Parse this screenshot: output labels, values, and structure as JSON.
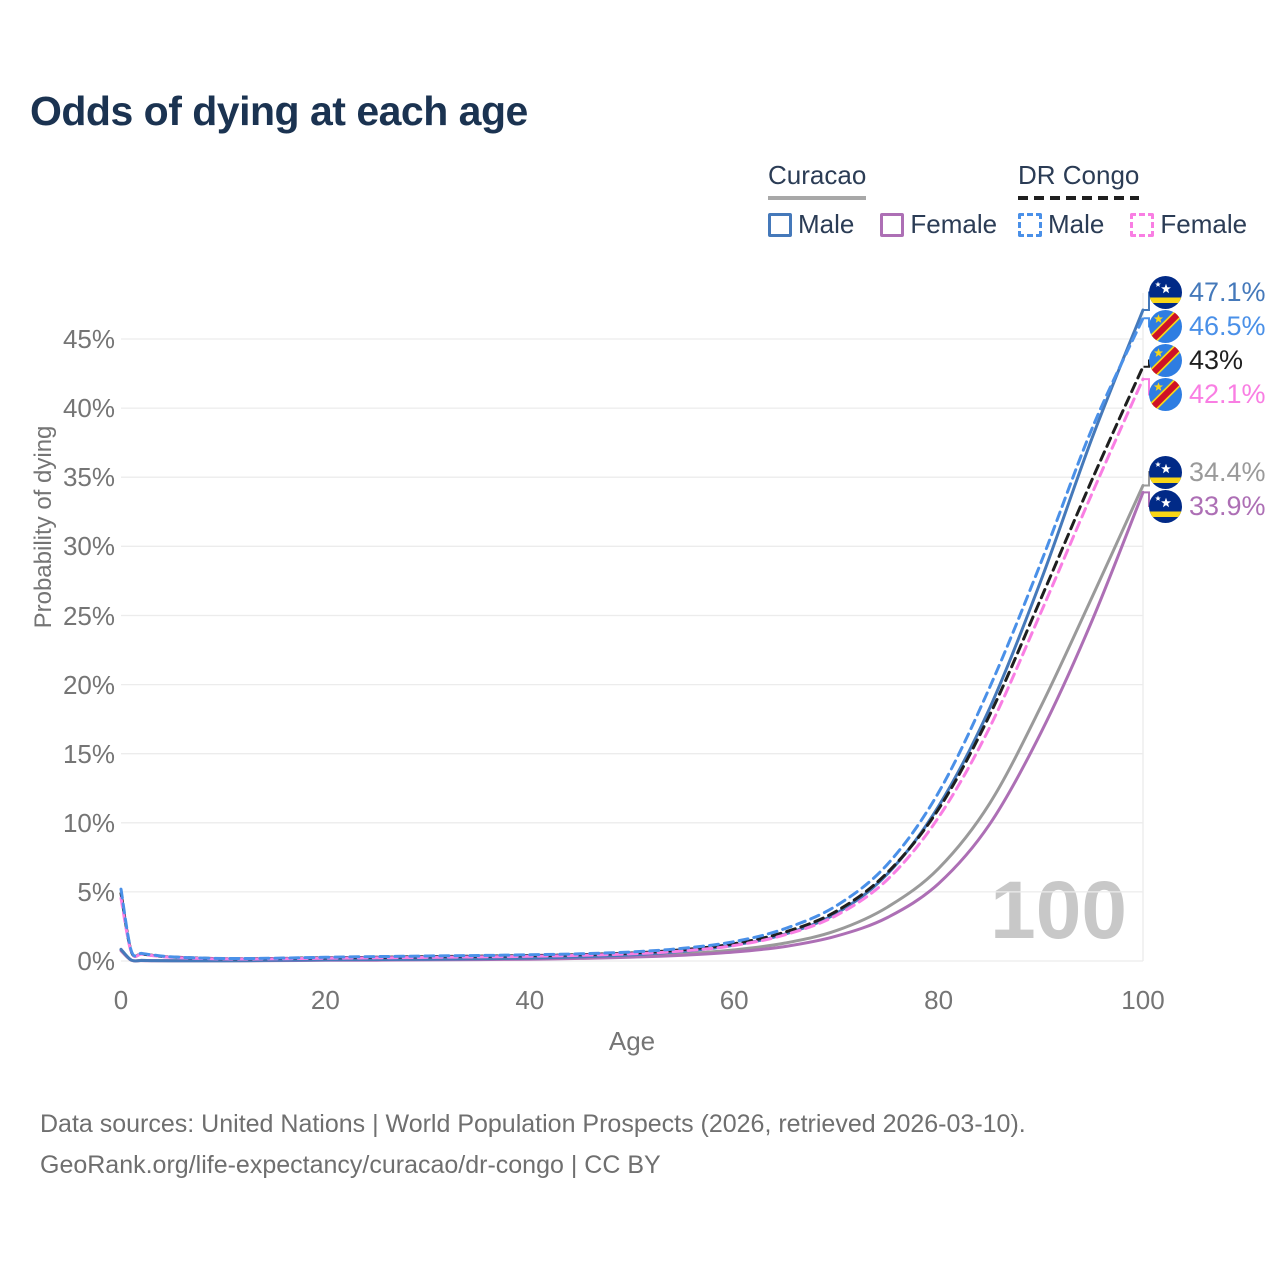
{
  "title": "Odds of dying at each age",
  "legend": {
    "groups": [
      {
        "name": "Curacao",
        "line_style": "solid",
        "underline_color": "#a8a8a8",
        "items": [
          {
            "label": "Male",
            "color": "#4579ba"
          },
          {
            "label": "Female",
            "color": "#ad6fb5"
          }
        ]
      },
      {
        "name": "DR Congo",
        "line_style": "dashed",
        "underline_color": "#1f1f1f",
        "items": [
          {
            "label": "Male",
            "color": "#4a90e8"
          },
          {
            "label": "Female",
            "color": "#f97ee3"
          }
        ]
      }
    ]
  },
  "chart_data": {
    "type": "line",
    "title": "Odds of dying at each age",
    "xlabel": "Age",
    "ylabel": "Probability of dying",
    "xlim": [
      0,
      100
    ],
    "ylim": [
      0,
      48
    ],
    "x_ticks": [
      0,
      20,
      40,
      60,
      80,
      100
    ],
    "y_ticks": [
      "0%",
      "5%",
      "10%",
      "15%",
      "20%",
      "25%",
      "30%",
      "35%",
      "40%",
      "45%"
    ],
    "grid": "horizontal, plus vertical rule at age 100",
    "legend_position": "top-right",
    "hover_age": "100",
    "x": [
      0,
      1,
      2,
      3,
      5,
      10,
      15,
      20,
      25,
      30,
      35,
      40,
      45,
      50,
      55,
      60,
      65,
      70,
      75,
      80,
      85,
      90,
      95,
      100
    ],
    "series": [
      {
        "id": "curacao-both",
        "country": "Curacao",
        "sex": "Both",
        "dashed": false,
        "color": "#9a9a9a",
        "flag": "curacao",
        "end_label": "34.4%",
        "values": [
          0.8,
          0.06,
          0.04,
          0.03,
          0.02,
          0.02,
          0.04,
          0.07,
          0.09,
          0.11,
          0.13,
          0.17,
          0.24,
          0.35,
          0.52,
          0.8,
          1.3,
          2.2,
          3.9,
          6.7,
          11.4,
          18.4,
          26.3,
          34.4
        ]
      },
      {
        "id": "curacao-female",
        "country": "Curacao",
        "sex": "Female",
        "dashed": false,
        "color": "#ad6fb5",
        "flag": "curacao",
        "end_label": "33.9%",
        "values": [
          0.75,
          0.06,
          0.03,
          0.02,
          0.015,
          0.015,
          0.03,
          0.05,
          0.06,
          0.08,
          0.1,
          0.13,
          0.19,
          0.28,
          0.42,
          0.65,
          1.05,
          1.8,
          3.15,
          5.6,
          9.9,
          16.5,
          24.6,
          33.9
        ]
      },
      {
        "id": "curacao-male",
        "country": "Curacao",
        "sex": "Male",
        "dashed": false,
        "color": "#4579ba",
        "flag": "curacao",
        "end_label": "47.1%",
        "values": [
          0.85,
          0.07,
          0.04,
          0.03,
          0.02,
          0.02,
          0.05,
          0.09,
          0.11,
          0.13,
          0.16,
          0.21,
          0.3,
          0.45,
          0.7,
          1.15,
          1.95,
          3.45,
          6.3,
          11.2,
          18.3,
          27.5,
          37.8,
          47.1
        ]
      },
      {
        "id": "dr-congo-both",
        "country": "DR Congo",
        "sex": "Both",
        "dashed": true,
        "color": "#1f1f1f",
        "flag": "dr-congo",
        "end_label": "43%",
        "values": [
          4.9,
          0.7,
          0.52,
          0.42,
          0.28,
          0.17,
          0.18,
          0.23,
          0.27,
          0.31,
          0.35,
          0.39,
          0.46,
          0.58,
          0.82,
          1.25,
          2.1,
          3.6,
          6.4,
          11.0,
          17.8,
          26.2,
          34.8,
          43.0
        ]
      },
      {
        "id": "dr-congo-female",
        "country": "DR Congo",
        "sex": "Female",
        "dashed": true,
        "color": "#f97ee3",
        "flag": "dr-congo",
        "end_label": "42.1%",
        "values": [
          4.55,
          0.66,
          0.49,
          0.4,
          0.26,
          0.15,
          0.16,
          0.2,
          0.23,
          0.26,
          0.3,
          0.34,
          0.41,
          0.52,
          0.73,
          1.12,
          1.9,
          3.3,
          5.9,
          10.4,
          16.9,
          25.2,
          33.8,
          42.1
        ]
      },
      {
        "id": "dr-congo-male",
        "country": "DR Congo",
        "sex": "Male",
        "dashed": true,
        "color": "#4a90e8",
        "flag": "dr-congo",
        "end_label": "46.5%",
        "values": [
          5.2,
          0.75,
          0.55,
          0.45,
          0.3,
          0.18,
          0.2,
          0.27,
          0.32,
          0.36,
          0.4,
          0.45,
          0.52,
          0.66,
          0.92,
          1.4,
          2.35,
          4.0,
          7.0,
          12.2,
          19.8,
          28.8,
          38.5,
          46.5
        ]
      }
    ]
  },
  "colors": {
    "title": "#1b3351",
    "axis_text": "#757575",
    "gridline": "#ececec",
    "watermark": "#c8c8c8",
    "curacao_flag_blue": "#012a87",
    "curacao_flag_yellow": "#f9d616",
    "dr_congo_flag_blue": "#2e7de2",
    "dr_congo_flag_red": "#cf1126",
    "dr_congo_flag_yellow": "#f7d618"
  },
  "footer": {
    "line1": "Data sources: United Nations | World Population Prospects (2026, retrieved 2026-03-10).",
    "line2": "GeoRank.org/life-expectancy/curacao/dr-congo | CC BY"
  }
}
